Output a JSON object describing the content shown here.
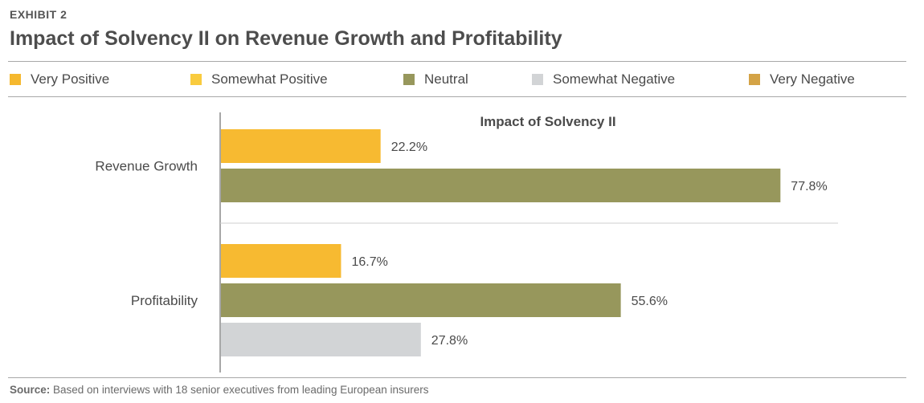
{
  "header": {
    "exhibit": "EXHIBIT 2",
    "title": "Impact of Solvency II on Revenue Growth and Profitability"
  },
  "legend": [
    {
      "label": "Very Positive",
      "color": "#F5B82E"
    },
    {
      "label": "Somewhat Positive",
      "color": "#F9CB3E"
    },
    {
      "label": "Neutral",
      "color": "#97975C"
    },
    {
      "label": "Somewhat Negative",
      "color": "#D2D4D6"
    },
    {
      "label": "Very Negative",
      "color": "#D4A346"
    }
  ],
  "chart_data": {
    "type": "bar",
    "orientation": "horizontal",
    "title": "Impact of Solvency II",
    "xlim": [
      0,
      100
    ],
    "grid": false,
    "legend_placement": "top",
    "categories": [
      "Revenue Growth",
      "Profitability"
    ],
    "groups": [
      {
        "category": "Revenue Growth",
        "bars": [
          {
            "series": "Somewhat Positive",
            "value": 22.2,
            "label": "22.2%",
            "color": "#F7BA31"
          },
          {
            "series": "Neutral",
            "value": 77.8,
            "label": "77.8%",
            "color": "#97975C"
          }
        ]
      },
      {
        "category": "Profitability",
        "bars": [
          {
            "series": "Somewhat Positive",
            "value": 16.7,
            "label": "16.7%",
            "color": "#F7BA31"
          },
          {
            "series": "Neutral",
            "value": 55.6,
            "label": "55.6%",
            "color": "#97975C"
          },
          {
            "series": "Somewhat Negative",
            "value": 27.8,
            "label": "27.8%",
            "color": "#D2D4D6"
          }
        ]
      }
    ]
  },
  "footer": {
    "source_label": "Source:",
    "source_text": " Based on interviews with 18 senior executives from leading European insurers"
  }
}
